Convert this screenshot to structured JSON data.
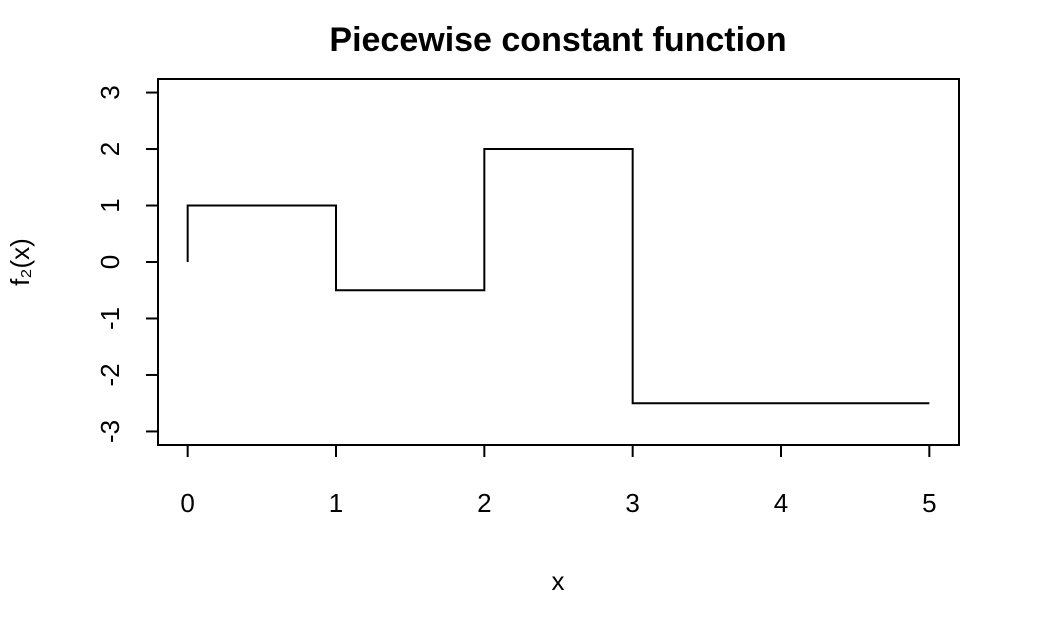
{
  "chart_data": {
    "type": "line",
    "title": "Piecewise constant function",
    "x_label": "x",
    "y_label": "f₂(x)",
    "x": [
      0,
      0,
      1,
      1,
      2,
      2,
      3,
      3,
      5
    ],
    "series": [
      {
        "color": "#000000",
        "values": [
          0,
          1,
          1,
          -0.5,
          -0.5,
          2,
          2,
          -2.5,
          -2.5
        ]
      }
    ],
    "xlim": [
      -0.2,
      5.2
    ],
    "ylim": [
      -3.24,
      3.24
    ],
    "xticks": [
      0,
      1,
      2,
      3,
      4,
      5
    ],
    "yticks": [
      -3,
      -2,
      -1,
      0,
      1,
      2,
      3
    ],
    "grid": false
  }
}
